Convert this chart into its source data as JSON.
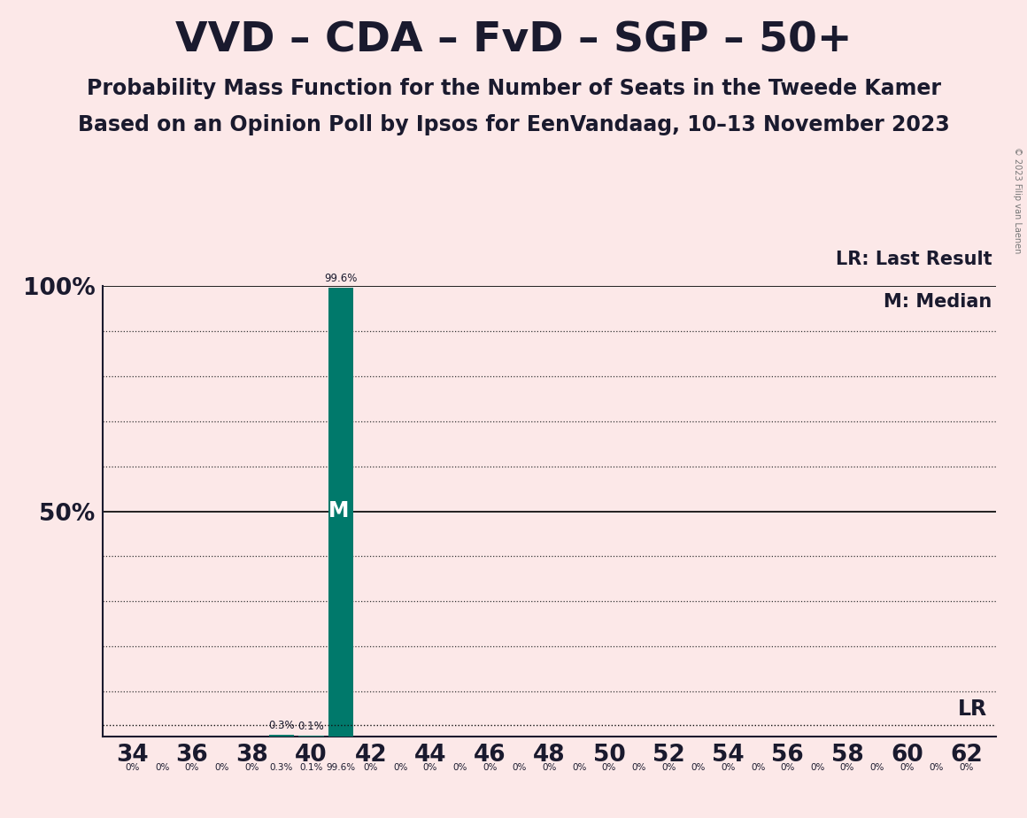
{
  "title": "VVD – CDA – FvD – SGP – 50+",
  "subtitle": "Probability Mass Function for the Number of Seats in the Tweede Kamer",
  "subsubtitle": "Based on an Opinion Poll by Ipsos for EenVandaag, 10–13 November 2023",
  "copyright": "© 2023 Filip van Laenen",
  "x_min": 33,
  "x_max": 63,
  "x_ticks": [
    34,
    36,
    38,
    40,
    42,
    44,
    46,
    48,
    50,
    52,
    54,
    56,
    58,
    60,
    62
  ],
  "y_min": 0,
  "y_max": 1.0,
  "y_ticks": [
    0.5,
    1.0
  ],
  "y_tick_labels": [
    "50%",
    "100%"
  ],
  "background_color": "#fce8e8",
  "bar_color": "#00796B",
  "bar_data": {
    "34": 0.0,
    "35": 0.0,
    "36": 0.0,
    "37": 0.0,
    "38": 0.0,
    "39": 0.003,
    "40": 0.001,
    "41": 0.996,
    "42": 0.0,
    "43": 0.0,
    "44": 0.0,
    "45": 0.0,
    "46": 0.0,
    "47": 0.0,
    "48": 0.0,
    "49": 0.0,
    "50": 0.0,
    "51": 0.0,
    "52": 0.0,
    "53": 0.0,
    "54": 0.0,
    "55": 0.0,
    "56": 0.0,
    "57": 0.0,
    "58": 0.0,
    "59": 0.0,
    "60": 0.0,
    "61": 0.0,
    "62": 0.0
  },
  "median_seat": 41,
  "lr_value": 0.025,
  "legend_lr": "LR: Last Result",
  "legend_m": "M: Median",
  "bar_label_seat": 41,
  "bar_label_text": "99.6%",
  "dotted_line_levels": [
    0.1,
    0.2,
    0.3,
    0.4,
    0.6,
    0.7,
    0.8,
    0.9
  ],
  "bar_width": 0.85,
  "title_fontsize": 34,
  "subtitle_fontsize": 17,
  "tick_fontsize": 19,
  "legend_fontsize": 15
}
